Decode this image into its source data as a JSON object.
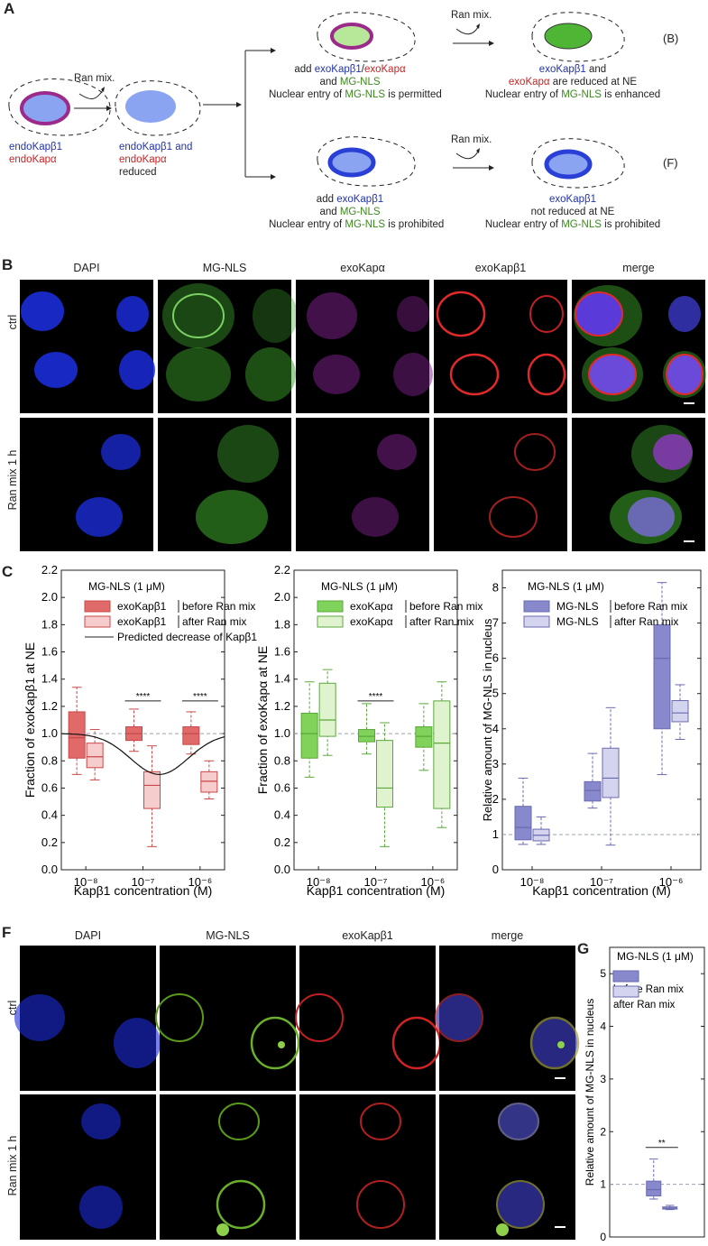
{
  "panel_letters": {
    "A": "A",
    "B": "B",
    "C": "C",
    "F": "F",
    "G": "G"
  },
  "schematic": {
    "start_label_line1": "endoKapβ1",
    "start_label_line2": "endoKapα",
    "ran_mix": "Ran mix.",
    "reduced_line1": "endoKapβ1 and",
    "reduced_line2": "endoKapα",
    "reduced_line3": "reduced",
    "top_add_prefix": "add ",
    "top_add_kb": "exoKapβ1",
    "top_add_slash": "/",
    "top_add_ka": "exoKapα",
    "top_and": "and ",
    "top_mg": "MG-NLS",
    "top_entry_prefix": "Nuclear entry of ",
    "top_entry_suffix": " is permitted",
    "topr_kb": "exoKapβ1",
    "topr_and": " and",
    "topr_ka": "exoKapα",
    "topr_reduced": " are reduced at NE",
    "topr_entry_prefix": "Nuclear entry of ",
    "topr_entry_suffix": " is enhanced",
    "bot_add_prefix": "add ",
    "bot_add_kb": "exoKapβ1",
    "bot_and": "and ",
    "bot_mg": "MG-NLS",
    "bot_entry_prefix": "Nuclear entry of ",
    "bot_entry_suffix": " is prohibited",
    "botr_kb": "exoKapβ1",
    "botr_line2": "not reduced at NE",
    "botr_entry_prefix": "Nuclear entry of ",
    "botr_entry_suffix": " is prohibited",
    "ref_B": "(B)",
    "ref_F": "(F)"
  },
  "panelB": {
    "columns": [
      "DAPI",
      "MG-NLS",
      "exoKapα",
      "exoKapβ1",
      "merge"
    ],
    "rows": [
      "ctrl",
      "Ran mix 1 h"
    ]
  },
  "panelF": {
    "columns": [
      "DAPI",
      "MG-NLS",
      "exoKapβ1",
      "merge"
    ],
    "rows": [
      "ctrl",
      "Ran mix 1 h"
    ]
  },
  "colors": {
    "red_dark": "#e06a6a",
    "red_light": "#f7cccc",
    "green_dark": "#7fd35a",
    "green_light": "#dff3cf",
    "purple_dark": "#8888cc",
    "purple_light": "#d4d4ee",
    "kapb1_blue": "#2233aa",
    "kapa_red": "#cc2222",
    "mg_green": "#3a8a1a"
  },
  "chart_data": [
    {
      "id": "C1",
      "type": "box",
      "ylabel": "Fraction of exoKapβ1 at NE",
      "xlabel": "Kapβ1 concentration (M)",
      "legend_title": "MG-NLS (1 μM)",
      "legend": [
        {
          "name": "exoKapβ1",
          "desc": "before Ran mix"
        },
        {
          "name": "exoKapβ1",
          "desc": "after Ran mix"
        },
        {
          "name": "Predicted decrease of Kapβ1"
        }
      ],
      "ylim": [
        0,
        2.2
      ],
      "yticks": [
        "0.0",
        "0.2",
        "0.4",
        "0.6",
        "0.8",
        "1.0",
        "1.2",
        "1.4",
        "1.6",
        "1.8",
        "2.0",
        "2.2"
      ],
      "xticks": [
        "10⁻⁸",
        "10⁻⁷",
        "10⁻⁶"
      ],
      "significance": [
        "****",
        "****"
      ],
      "groups": [
        {
          "before": {
            "min": 0.7,
            "q1": 0.82,
            "med": 0.97,
            "q3": 1.16,
            "max": 1.34
          },
          "after": {
            "min": 0.66,
            "q1": 0.75,
            "med": 0.83,
            "q3": 0.93,
            "max": 1.03
          }
        },
        {
          "before": {
            "min": 0.87,
            "q1": 0.95,
            "med": 1.0,
            "q3": 1.05,
            "max": 1.18
          },
          "after": {
            "min": 0.17,
            "q1": 0.45,
            "med": 0.62,
            "q3": 0.72,
            "max": 0.91
          }
        },
        {
          "before": {
            "min": 0.85,
            "q1": 0.92,
            "med": 1.0,
            "q3": 1.05,
            "max": 1.16
          },
          "after": {
            "min": 0.52,
            "q1": 0.57,
            "med": 0.65,
            "q3": 0.72,
            "max": 0.8
          }
        }
      ]
    },
    {
      "id": "C2",
      "type": "box",
      "ylabel": "Fraction of exoKapα at NE",
      "xlabel": "Kapβ1 concentration (M)",
      "legend_title": "MG-NLS (1 μM)",
      "legend": [
        {
          "name": "exoKapα",
          "desc": "before Ran mix"
        },
        {
          "name": "exoKapα",
          "desc": "after Ran mix"
        }
      ],
      "ylim": [
        0,
        2.2
      ],
      "yticks": [
        "0.0",
        "0.2",
        "0.4",
        "0.6",
        "0.8",
        "1.0",
        "1.2",
        "1.4",
        "1.6",
        "1.8",
        "2.0",
        "2.2"
      ],
      "xticks": [
        "10⁻⁸",
        "10⁻⁷",
        "10⁻⁶"
      ],
      "significance": [
        "****"
      ],
      "groups": [
        {
          "before": {
            "min": 0.68,
            "q1": 0.82,
            "med": 1.0,
            "q3": 1.15,
            "max": 1.38
          },
          "after": {
            "min": 0.84,
            "q1": 0.98,
            "med": 1.1,
            "q3": 1.37,
            "max": 1.47
          }
        },
        {
          "before": {
            "min": 0.85,
            "q1": 0.94,
            "med": 0.98,
            "q3": 1.03,
            "max": 1.22
          },
          "after": {
            "min": 0.17,
            "q1": 0.46,
            "med": 0.6,
            "q3": 0.95,
            "max": 1.08
          }
        },
        {
          "before": {
            "min": 0.73,
            "q1": 0.9,
            "med": 0.98,
            "q3": 1.05,
            "max": 1.22
          },
          "after": {
            "min": 0.31,
            "q1": 0.45,
            "med": 0.93,
            "q3": 1.24,
            "max": 1.38
          }
        }
      ]
    },
    {
      "id": "C3",
      "type": "box",
      "ylabel": "Relative amount of MG-NLS in nucleus",
      "xlabel": "Kapβ1 concentration (M)",
      "legend_title": "MG-NLS (1 μM)",
      "legend": [
        {
          "name": "MG-NLS",
          "desc": "before Ran mix"
        },
        {
          "name": "MG-NLS",
          "desc": "after Ran mix"
        }
      ],
      "ylim": [
        0,
        8.5
      ],
      "yticks": [
        "0",
        "1",
        "2",
        "3",
        "4",
        "5",
        "6",
        "7",
        "8"
      ],
      "xticks": [
        "10⁻⁸",
        "10⁻⁷",
        "10⁻⁶"
      ],
      "groups": [
        {
          "before": {
            "min": 0.72,
            "q1": 0.85,
            "med": 1.2,
            "q3": 1.8,
            "max": 2.6
          },
          "after": {
            "min": 0.72,
            "q1": 0.82,
            "med": 0.98,
            "q3": 1.15,
            "max": 1.5
          }
        },
        {
          "before": {
            "min": 1.75,
            "q1": 1.95,
            "med": 2.25,
            "q3": 2.5,
            "max": 3.3
          },
          "after": {
            "min": 0.7,
            "q1": 2.05,
            "med": 2.6,
            "q3": 3.45,
            "max": 4.6
          }
        },
        {
          "before": {
            "min": 2.7,
            "q1": 4.0,
            "med": 6.0,
            "q3": 6.95,
            "max": 8.15
          },
          "after": {
            "min": 3.7,
            "q1": 4.2,
            "med": 4.45,
            "q3": 4.8,
            "max": 5.25
          }
        }
      ]
    },
    {
      "id": "G",
      "type": "box",
      "ylabel": "Relative amount of MG-NLS in nucleus",
      "legend_title": "MG-NLS (1 μM)",
      "legend": [
        {
          "desc": "before Ran mix"
        },
        {
          "desc": "after Ran mix"
        }
      ],
      "ylim": [
        0,
        5.5
      ],
      "yticks": [
        "0",
        "1",
        "2",
        "3",
        "4",
        "5"
      ],
      "significance": [
        "**"
      ],
      "groups": [
        {
          "before": {
            "min": 0.72,
            "q1": 0.78,
            "med": 0.9,
            "q3": 1.06,
            "max": 1.48
          },
          "after": {
            "min": 0.52,
            "q1": 0.53,
            "med": 0.55,
            "q3": 0.57,
            "max": 0.6
          }
        }
      ]
    }
  ]
}
